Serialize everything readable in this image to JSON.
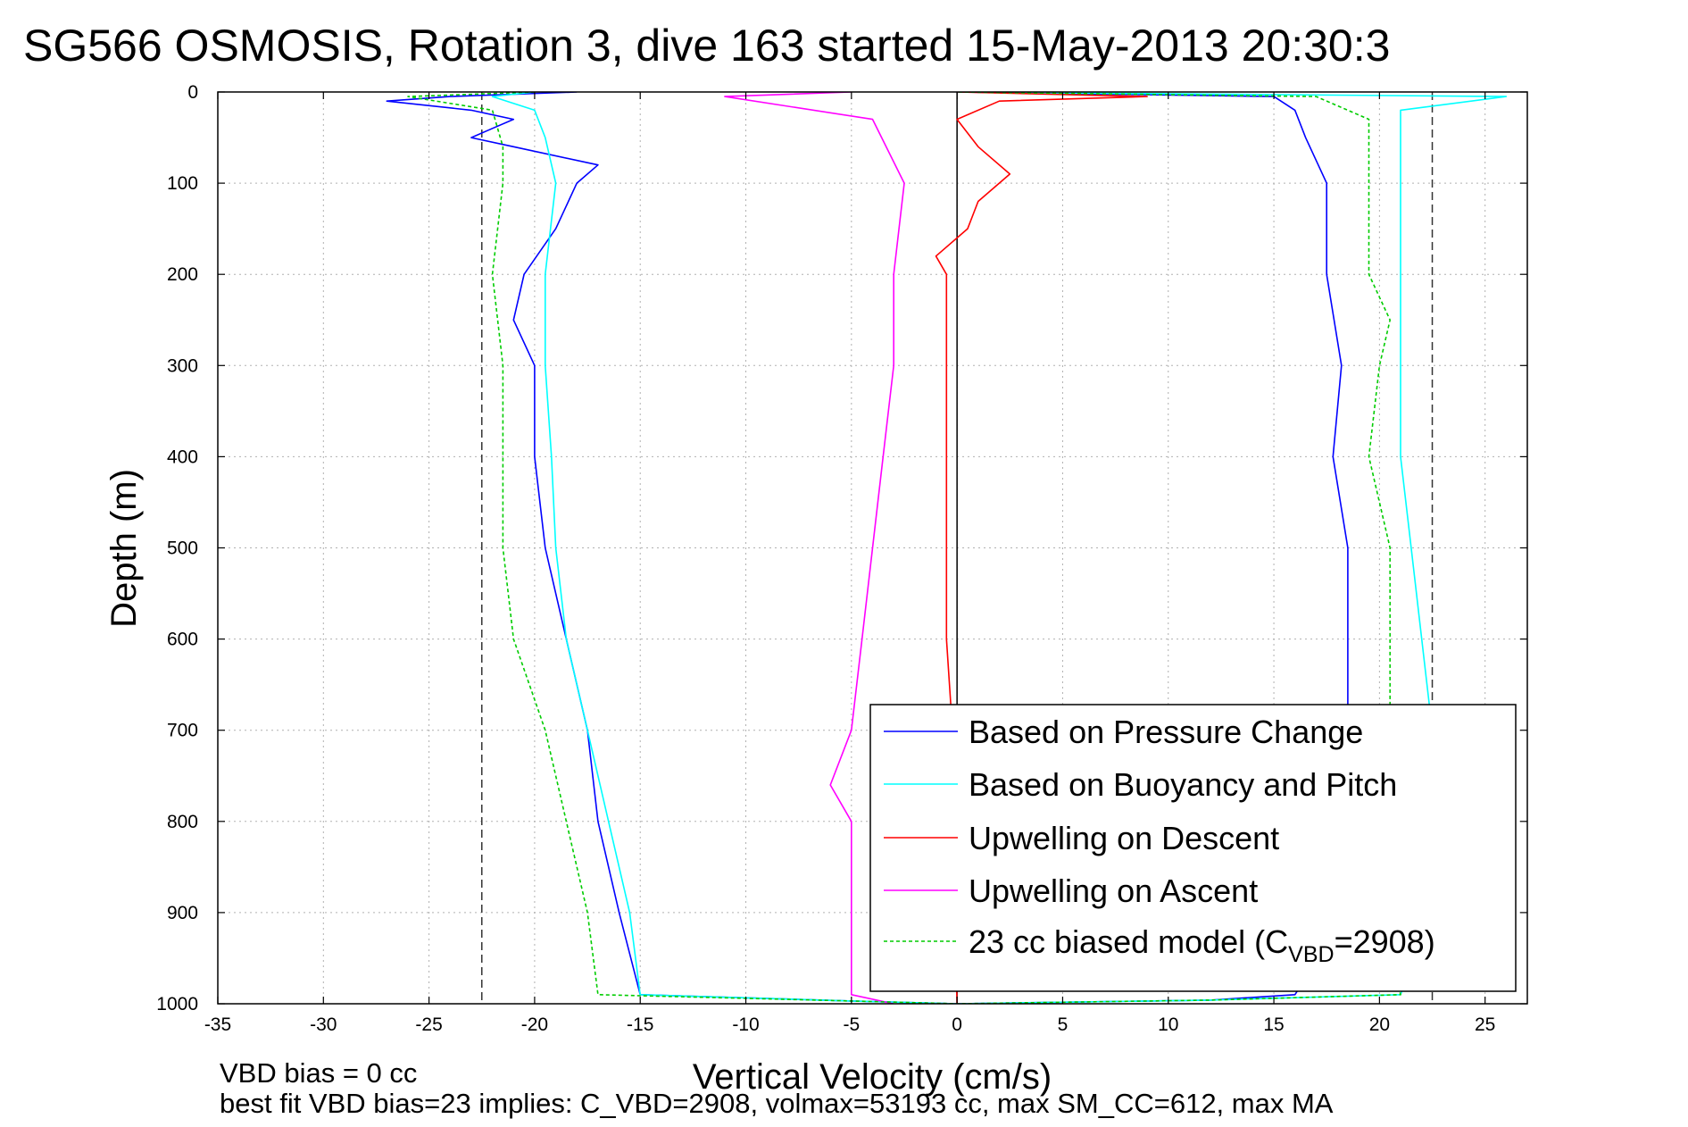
{
  "chart_data": {
    "type": "line",
    "title": "SG566 OSMOSIS, Rotation 3, dive 163 started 15-May-2013 20:30:3",
    "xlabel": "Vertical Velocity (cm/s)",
    "ylabel": "Depth (m)",
    "xlim": [
      -35,
      27
    ],
    "ylim": [
      1000,
      0
    ],
    "y_reversed": true,
    "grid": "on (dotted)",
    "x_ticks": [
      -35,
      -30,
      -25,
      -20,
      -15,
      -10,
      -5,
      0,
      5,
      10,
      15,
      20,
      25
    ],
    "y_ticks": [
      0,
      100,
      200,
      300,
      400,
      500,
      600,
      700,
      800,
      900,
      1000
    ],
    "x_tick_labels": [
      "-35",
      "-30",
      "-25",
      "-20",
      "-15",
      "-10",
      "-5",
      "0",
      "5",
      "10",
      "15",
      "20",
      "25"
    ],
    "y_tick_labels": [
      "0",
      "100",
      "200",
      "300",
      "400",
      "500",
      "600",
      "700",
      "800",
      "900",
      "1000"
    ],
    "reference_lines": {
      "dashed_vertical_x": [
        -22.5,
        22.5
      ],
      "solid_vertical_x": [
        0
      ]
    },
    "legend": {
      "placement": "bottom-right",
      "entries": [
        {
          "label": "Based on Pressure Change",
          "color": "#0000ff",
          "style": "solid"
        },
        {
          "label": "Based on Buoyancy and Pitch",
          "color": "#00ffff",
          "style": "solid"
        },
        {
          "label": "Upwelling on Descent",
          "color": "#ff0000",
          "style": "solid"
        },
        {
          "label": "Upwelling on Ascent",
          "color": "#ff00ff",
          "style": "solid"
        },
        {
          "label_prefix": "23 cc biased model (C",
          "label_sub": "VBD",
          "label_suffix": "=2908)",
          "color": "#00cc00",
          "style": "dashed"
        }
      ]
    },
    "series": [
      {
        "name": "Based on Pressure Change",
        "color": "#0000ff",
        "depth": [
          0,
          5,
          10,
          20,
          30,
          40,
          50,
          60,
          80,
          100,
          150,
          200,
          250,
          300,
          400,
          500,
          600,
          700,
          800,
          900,
          990,
          997,
          1000,
          996,
          990,
          900,
          800,
          700,
          600,
          500,
          400,
          300,
          200,
          100,
          50,
          20,
          5,
          0
        ],
        "velocity": [
          -18,
          -24,
          -27,
          -23,
          -21,
          -22,
          -23,
          -21,
          -17,
          -18,
          -19,
          -20.5,
          -21,
          -20,
          -20,
          -19.5,
          -18.5,
          -17.5,
          -17,
          -16,
          -15,
          -5,
          0,
          12,
          16,
          18.5,
          18.5,
          18.5,
          18.5,
          18.5,
          17.8,
          18.2,
          17.5,
          17.5,
          16.5,
          16,
          15,
          0
        ]
      },
      {
        "name": "Based on Buoyancy and Pitch",
        "color": "#00ffff",
        "depth": [
          0,
          5,
          20,
          50,
          100,
          200,
          300,
          400,
          500,
          600,
          700,
          800,
          900,
          990,
          997,
          1000,
          996,
          990,
          900,
          800,
          700,
          600,
          500,
          400,
          300,
          200,
          150,
          100,
          50,
          20,
          5,
          0
        ],
        "velocity": [
          -20,
          -22,
          -20,
          -19.5,
          -19,
          -19.5,
          -19.5,
          -19.2,
          -19,
          -18.5,
          -17.5,
          -16.5,
          -15.5,
          -15,
          -5,
          0,
          12,
          21,
          22.5,
          22.5,
          22.5,
          22,
          21.5,
          21,
          21,
          21,
          21,
          21,
          21,
          21,
          26,
          0
        ]
      },
      {
        "name": "Upwelling on Descent",
        "color": "#ff0000",
        "depth": [
          0,
          5,
          10,
          30,
          60,
          90,
          120,
          150,
          180,
          200,
          300,
          400,
          500,
          600,
          670,
          1000
        ],
        "velocity": [
          0,
          9,
          2,
          0,
          1,
          2.5,
          1,
          0.5,
          -1,
          -0.5,
          -0.5,
          -0.5,
          -0.5,
          -0.5,
          -0.3,
          0
        ]
      },
      {
        "name": "Upwelling on Ascent",
        "color": "#ff00ff",
        "depth": [
          0,
          5,
          30,
          100,
          200,
          300,
          400,
          500,
          600,
          700,
          760,
          800,
          900,
          990,
          1000
        ],
        "velocity": [
          -5,
          -11,
          -4,
          -2.5,
          -3,
          -3,
          -3.5,
          -4,
          -4.5,
          -5,
          -6,
          -5,
          -5,
          -5,
          -3
        ]
      },
      {
        "name": "23 cc biased model (C_VBD=2908)",
        "color": "#00cc00",
        "dashed": true,
        "depth": [
          0,
          5,
          20,
          60,
          100,
          200,
          300,
          400,
          500,
          600,
          700,
          800,
          900,
          990,
          997,
          1000,
          996,
          990,
          900,
          800,
          700,
          600,
          500,
          400,
          300,
          250,
          200,
          100,
          30,
          5,
          0
        ],
        "velocity": [
          -20,
          -26,
          -22,
          -21.5,
          -21.5,
          -22,
          -21.5,
          -21.5,
          -21.5,
          -21,
          -19.5,
          -18.5,
          -17.5,
          -17,
          -5,
          0,
          12,
          21,
          20,
          20,
          20.5,
          20.5,
          20.5,
          19.5,
          20,
          20.5,
          19.5,
          19.5,
          19.5,
          17,
          0
        ]
      }
    ]
  },
  "notes": {
    "vbd_bias": "VBD bias = 0 cc",
    "best_fit": "best fit VBD bias=23 implies: C_VBD=2908, volmax=53193 cc, max SM_CC=612, max MA"
  }
}
